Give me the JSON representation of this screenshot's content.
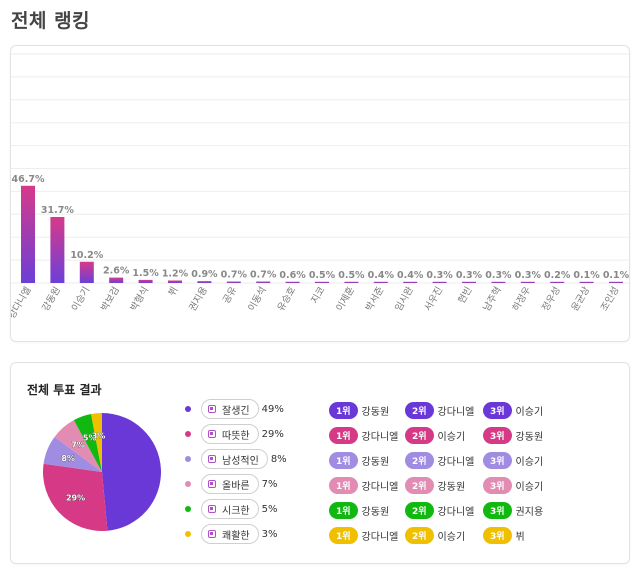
{
  "page": {
    "title": "전체 랭킹"
  },
  "chart_data": {
    "type": "bar",
    "categories": [
      "강다니엘",
      "강동원",
      "이승기",
      "박보검",
      "박형식",
      "뷔",
      "권지용",
      "공유",
      "이동석",
      "유승호",
      "지코",
      "이제훈",
      "박서준",
      "임시완",
      "서우진",
      "현빈",
      "남주혁",
      "하정우",
      "정우성",
      "윤균상",
      "조인성"
    ],
    "values": [
      46.7,
      31.7,
      10.2,
      2.6,
      1.5,
      1.2,
      0.9,
      0.7,
      0.7,
      0.6,
      0.5,
      0.5,
      0.4,
      0.4,
      0.3,
      0.3,
      0.3,
      0.3,
      0.2,
      0.1,
      0.1
    ],
    "data_labels": [
      "46.7%",
      "31.7%",
      "10.2%",
      "2.6%",
      "1.5%",
      "1.2%",
      "0.9%",
      "0.7%",
      "0.7%",
      "0.6%",
      "0.5%",
      "0.5%",
      "0.4%",
      "0.4%",
      "0.3%",
      "0.3%",
      "0.3%",
      "0.3%",
      "0.2%",
      "0.1%",
      "0.1%"
    ],
    "ylim": [
      0,
      110
    ],
    "grid": true,
    "colors": {
      "bar_top": "#d63a8a",
      "bar_bottom": "#6c3fd8",
      "grid": "#eeeeee",
      "label": "#888888"
    }
  },
  "vote": {
    "title": "전체 투표 결과",
    "pie": {
      "type": "pie",
      "slices": [
        {
          "label": "잘생긴",
          "value": 49,
          "pct_text": "49%",
          "color": "#6a38d6",
          "pie_label": ""
        },
        {
          "label": "따뜻한",
          "value": 29,
          "pct_text": "29%",
          "color": "#d63a86",
          "pie_label": "29%"
        },
        {
          "label": "남성적인",
          "value": 8,
          "pct_text": "8%",
          "color": "#a08ce0",
          "pie_label": "8%"
        },
        {
          "label": "올바른",
          "value": 7,
          "pct_text": "7%",
          "color": "#e28cb4",
          "pie_label": "7%"
        },
        {
          "label": "시크한",
          "value": 5,
          "pct_text": "5%",
          "color": "#10b810",
          "pie_label": "5%"
        },
        {
          "label": "쾌활한",
          "value": 3,
          "pct_text": "3%",
          "color": "#f0c000",
          "pie_label": "3%"
        }
      ]
    },
    "top3": [
      {
        "color": "#6a38d6",
        "items": [
          {
            "rank": "1위",
            "name": "강동원"
          },
          {
            "rank": "2위",
            "name": "강다니엘"
          },
          {
            "rank": "3위",
            "name": "이승기"
          }
        ]
      },
      {
        "color": "#d63a86",
        "items": [
          {
            "rank": "1위",
            "name": "강다니엘"
          },
          {
            "rank": "2위",
            "name": "이승기"
          },
          {
            "rank": "3위",
            "name": "강동원"
          }
        ]
      },
      {
        "color": "#a08ce0",
        "items": [
          {
            "rank": "1위",
            "name": "강동원"
          },
          {
            "rank": "2위",
            "name": "강다니엘"
          },
          {
            "rank": "3위",
            "name": "이승기"
          }
        ]
      },
      {
        "color": "#e28cb4",
        "items": [
          {
            "rank": "1위",
            "name": "강다니엘"
          },
          {
            "rank": "2위",
            "name": "강동원"
          },
          {
            "rank": "3위",
            "name": "이승기"
          }
        ]
      },
      {
        "color": "#10b810",
        "items": [
          {
            "rank": "1위",
            "name": "강동원"
          },
          {
            "rank": "2위",
            "name": "강다니엘"
          },
          {
            "rank": "3위",
            "name": "권지용"
          }
        ]
      },
      {
        "color": "#f0c000",
        "items": [
          {
            "rank": "1위",
            "name": "강다니엘"
          },
          {
            "rank": "2위",
            "name": "이승기"
          },
          {
            "rank": "3위",
            "name": "뷔"
          }
        ]
      }
    ]
  }
}
